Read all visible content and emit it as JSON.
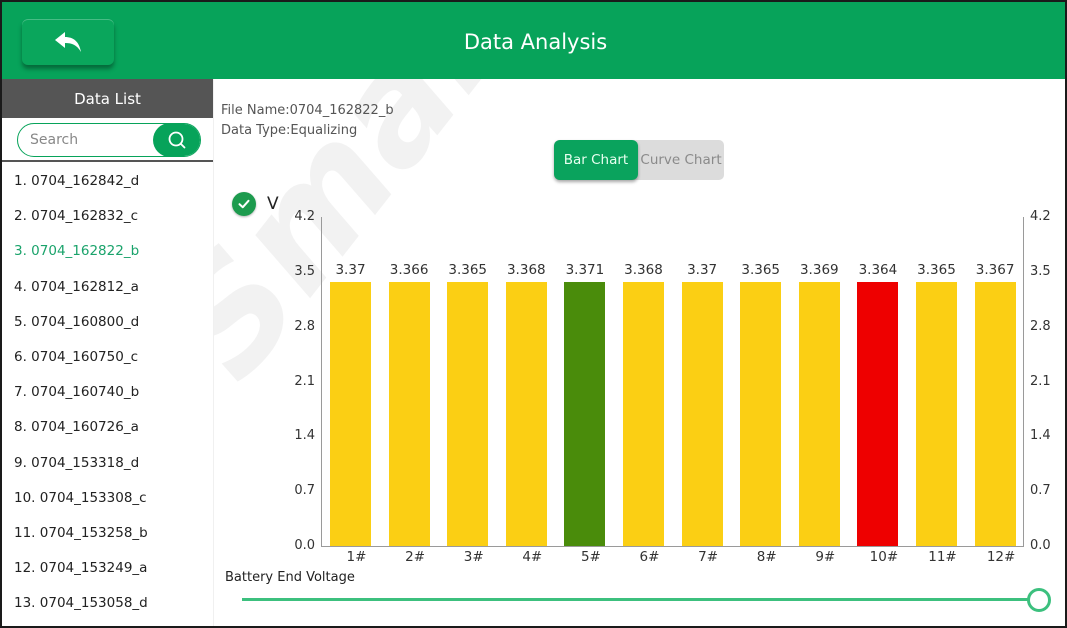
{
  "header": {
    "title": "Data Analysis",
    "back_icon": "back-arrow-icon"
  },
  "sidebar": {
    "title": "Data List",
    "search": {
      "placeholder": "Search",
      "value": "",
      "icon": "search-icon"
    },
    "active_index": 2,
    "items": [
      {
        "label": "1.  0704_162842_d"
      },
      {
        "label": "2.  0704_162832_c"
      },
      {
        "label": "3.  0704_162822_b"
      },
      {
        "label": "4.  0704_162812_a"
      },
      {
        "label": "5.  0704_160800_d"
      },
      {
        "label": "6.  0704_160750_c"
      },
      {
        "label": "7.  0704_160740_b"
      },
      {
        "label": "8.  0704_160726_a"
      },
      {
        "label": "9.  0704_153318_d"
      },
      {
        "label": "10.  0704_153308_c"
      },
      {
        "label": "11.  0704_153258_b"
      },
      {
        "label": "12.  0704_153249_a"
      },
      {
        "label": "13.  0704_153058_d"
      }
    ]
  },
  "file_info": {
    "file_name": "File Name:0704_162822_b",
    "data_type": "Data Type:Equalizing"
  },
  "chart_toggle": {
    "bar_label": "Bar Chart",
    "curve_label": "Curve Chart",
    "selected": "Bar Chart"
  },
  "legend": {
    "label": "V",
    "checked": true,
    "icon": "check-circle-icon"
  },
  "colors": {
    "accent": "#07a35a",
    "bar_normal": "#fbcf14",
    "bar_max": "#4a8c0b",
    "bar_min": "#ee0000",
    "slider": "#3cc07e"
  },
  "chart_data": {
    "type": "bar",
    "title": "",
    "xlabel": "",
    "ylabel": "V",
    "ylim": [
      0.0,
      4.2
    ],
    "yticks": [
      "0.0",
      "0.7",
      "1.4",
      "2.1",
      "2.8",
      "3.5",
      "4.2"
    ],
    "y_axis_right": true,
    "grid": false,
    "legend_position": "top-left",
    "categories": [
      "1#",
      "2#",
      "3#",
      "4#",
      "5#",
      "6#",
      "7#",
      "8#",
      "9#",
      "10#",
      "11#",
      "12#"
    ],
    "values": [
      3.37,
      3.366,
      3.365,
      3.368,
      3.371,
      3.368,
      3.37,
      3.365,
      3.369,
      3.364,
      3.365,
      3.367
    ],
    "value_labels": [
      "3.37",
      "3.366",
      "3.365",
      "3.368",
      "3.371",
      "3.368",
      "3.37",
      "3.365",
      "3.369",
      "3.364",
      "3.365",
      "3.367"
    ],
    "highlight": {
      "max_index": 4,
      "min_index": 9
    }
  },
  "slider": {
    "label": "Battery End Voltage",
    "position_percent": 100
  }
}
